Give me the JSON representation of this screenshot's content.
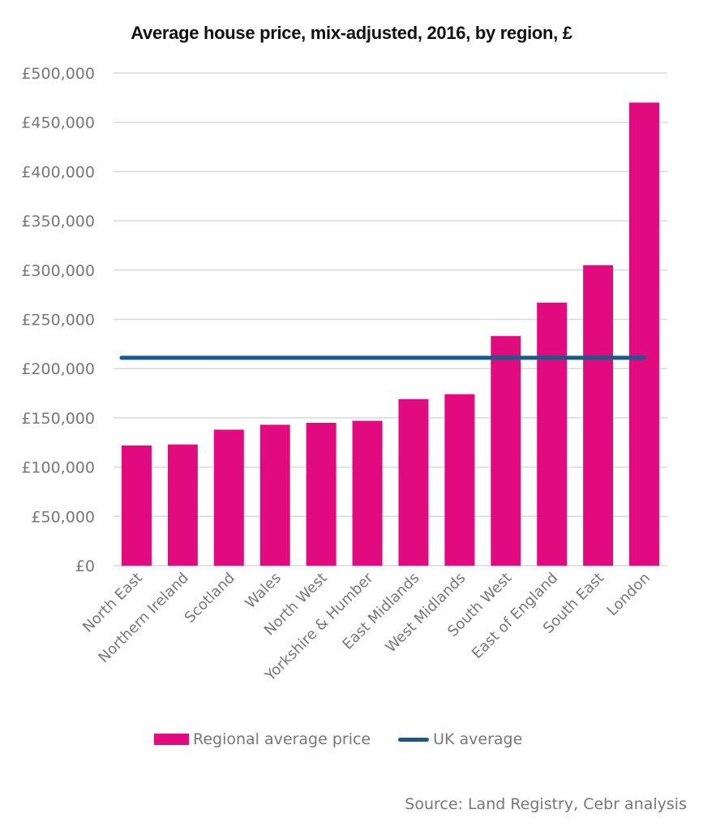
{
  "chart_data": {
    "type": "bar",
    "title": "Average house price, mix-adjusted, 2016, by region, £",
    "xlabel": "",
    "ylabel": "",
    "ylim": [
      0,
      500000
    ],
    "yticks": [
      0,
      50000,
      100000,
      150000,
      200000,
      250000,
      300000,
      350000,
      400000,
      450000,
      500000
    ],
    "ytick_labels": [
      "£0",
      "£50,000",
      "£100,000",
      "£150,000",
      "£200,000",
      "£250,000",
      "£300,000",
      "£350,000",
      "£400,000",
      "£450,000",
      "£500,000"
    ],
    "grid": true,
    "categories": [
      "North East",
      "Northern Ireland",
      "Scotland",
      "Wales",
      "North West",
      "Yorkshire & Humber",
      "East Midlands",
      "West Midlands",
      "South West",
      "East of England",
      "South East",
      "London"
    ],
    "series": [
      {
        "name": "Regional average price",
        "type": "bar",
        "color": "#e20a7f",
        "values": [
          122000,
          123000,
          138000,
          143000,
          145000,
          147000,
          169000,
          174000,
          233000,
          267000,
          305000,
          470000
        ]
      },
      {
        "name": "UK average",
        "type": "line",
        "color": "#1a5a8a",
        "values": [
          211000,
          211000,
          211000,
          211000,
          211000,
          211000,
          211000,
          211000,
          211000,
          211000,
          211000,
          211000
        ]
      }
    ],
    "legend_position": "bottom",
    "source": "Source:  Land Registry, Cebr analysis"
  }
}
